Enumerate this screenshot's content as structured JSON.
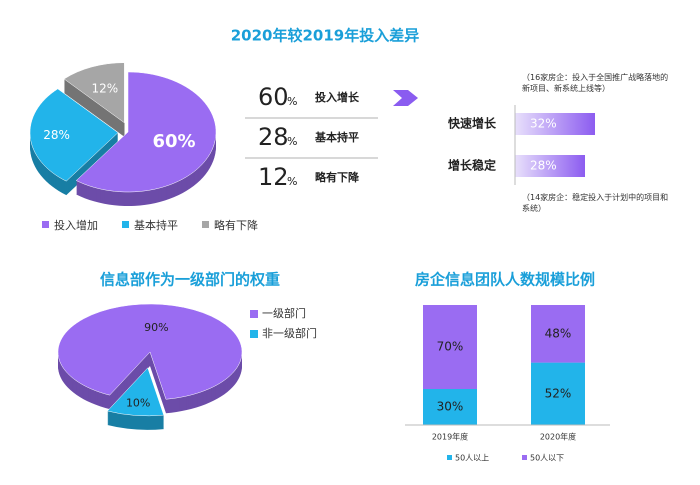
{
  "chart_data": [
    {
      "type": "pie",
      "title": "2020年较2019年投入差异",
      "categories": [
        "投入增加",
        "基本持平",
        "略有下降"
      ],
      "values": [
        60,
        28,
        12
      ],
      "value_labels": [
        "60%",
        "28%",
        "12%"
      ],
      "colors": [
        "#9a6cf2",
        "#22b4ea",
        "#a6a6a6"
      ],
      "unit": "%",
      "summary_labels": [
        "投入增长",
        "基本持平",
        "略有下降"
      ]
    },
    {
      "type": "hbar",
      "categories": [
        "快速增长",
        "增长稳定"
      ],
      "values": [
        32,
        28
      ],
      "value_labels": [
        "32%",
        "28%"
      ],
      "color": "#9a6cf2",
      "annotations": [
        "（16家房企：投入于全国推广战略落地的新项目、新系统上线等）",
        "（14家房企：稳定投入于计划中的项目和系统）"
      ]
    },
    {
      "type": "pie",
      "title": "信息部作为一级部门的权重",
      "categories": [
        "一级部门",
        "非一级部门"
      ],
      "values": [
        90,
        10
      ],
      "value_labels": [
        "90%",
        "10%"
      ],
      "colors": [
        "#9a6cf2",
        "#22b4ea"
      ]
    },
    {
      "type": "stacked-bar",
      "title": "房企信息团队人数规模比例",
      "categories": [
        "2019年度",
        "2020年度"
      ],
      "series": [
        {
          "name": "50人以上",
          "color": "#22b4ea",
          "values": [
            30,
            52
          ],
          "value_labels": [
            "30%",
            "52%"
          ]
        },
        {
          "name": "50人以下",
          "color": "#9a6cf2",
          "values": [
            70,
            48
          ],
          "value_labels": [
            "70%",
            "48%"
          ]
        }
      ]
    }
  ]
}
